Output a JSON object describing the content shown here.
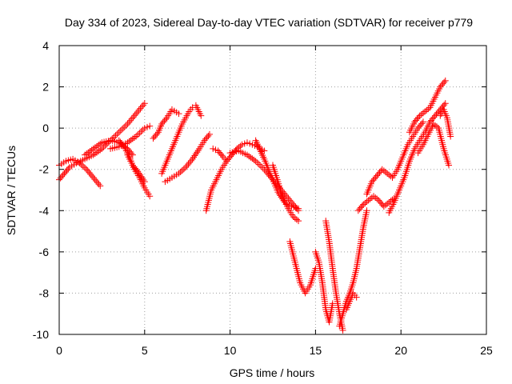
{
  "chart_data": {
    "type": "scatter",
    "title": "Day 334 of 2023, Sidereal Day-to-day VTEC variation (SDTVAR) for receiver p779",
    "xlabel": "GPS time / hours",
    "ylabel": "SDTVAR / TECUs",
    "xlim": [
      0,
      25
    ],
    "ylim": [
      -10,
      4
    ],
    "xticks": [
      0,
      5,
      10,
      15,
      20,
      25
    ],
    "yticks": [
      -10,
      -8,
      -6,
      -4,
      -2,
      0,
      2,
      4
    ],
    "xtick_labels": [
      "0",
      "5",
      "10",
      "15",
      "20",
      "25"
    ],
    "ytick_labels": [
      "-10",
      "-8",
      "-6",
      "-4",
      "-2",
      "0",
      "2",
      "4"
    ],
    "grid": true,
    "marker": "+",
    "color": "#ff0000",
    "series": [
      {
        "x": [
          0.0,
          0.3,
          0.6,
          1.0,
          1.5,
          2.0,
          2.5,
          3.0,
          3.5,
          4.0,
          4.5,
          5.0
        ],
        "y": [
          -2.5,
          -2.2,
          -1.9,
          -1.7,
          -1.5,
          -1.3,
          -1.0,
          -0.6,
          -0.2,
          0.2,
          0.7,
          1.2
        ]
      },
      {
        "x": [
          0.0,
          0.4,
          0.8,
          1.2,
          1.6,
          2.0,
          2.4
        ],
        "y": [
          -1.8,
          -1.6,
          -1.5,
          -1.7,
          -2.0,
          -2.4,
          -2.8
        ]
      },
      {
        "x": [
          1.5,
          2.0,
          2.5,
          3.0,
          3.5,
          4.0,
          4.3
        ],
        "y": [
          -1.3,
          -1.0,
          -0.7,
          -0.6,
          -0.7,
          -1.0,
          -1.3
        ]
      },
      {
        "x": [
          3.5,
          3.8,
          4.1,
          4.4,
          4.7,
          5.0,
          5.3
        ],
        "y": [
          -0.6,
          -0.9,
          -1.4,
          -2.0,
          -2.4,
          -2.9,
          -3.3
        ]
      },
      {
        "x": [
          3.0,
          3.5,
          4.0,
          4.5,
          5.0,
          5.3
        ],
        "y": [
          -1.0,
          -0.9,
          -0.7,
          -0.4,
          0.0,
          0.1
        ]
      },
      {
        "x": [
          4.0,
          4.3,
          4.6,
          5.0
        ],
        "y": [
          -1.3,
          -1.8,
          -2.1,
          -2.6
        ]
      },
      {
        "x": [
          6.0,
          6.2,
          6.4,
          6.6,
          6.8,
          7.0,
          7.2,
          7.4,
          7.6,
          7.8,
          8.0,
          8.3
        ],
        "y": [
          -2.2,
          -1.8,
          -1.4,
          -1.0,
          -0.6,
          -0.2,
          0.2,
          0.5,
          0.8,
          1.0,
          1.1,
          0.6
        ]
      },
      {
        "x": [
          5.5,
          5.8,
          6.0,
          6.3,
          6.6,
          7.0
        ],
        "y": [
          -0.5,
          -0.2,
          0.2,
          0.5,
          0.9,
          0.7
        ]
      },
      {
        "x": [
          6.2,
          6.6,
          7.0,
          7.4,
          7.8,
          8.2,
          8.5,
          8.8
        ],
        "y": [
          -2.6,
          -2.4,
          -2.2,
          -1.9,
          -1.5,
          -1.0,
          -0.6,
          -0.3
        ]
      },
      {
        "x": [
          8.6,
          8.9,
          9.2,
          9.5,
          9.8,
          10.1,
          10.4,
          10.7,
          11.0,
          11.3,
          11.6,
          12.0
        ],
        "y": [
          -4.0,
          -3.0,
          -2.5,
          -2.0,
          -1.6,
          -1.3,
          -1.0,
          -0.8,
          -0.7,
          -0.8,
          -0.9,
          -1.1
        ]
      },
      {
        "x": [
          9.0,
          9.3,
          9.6,
          9.8
        ],
        "y": [
          -1.0,
          -1.1,
          -1.4,
          -1.6
        ]
      },
      {
        "x": [
          10.0,
          10.5,
          11.0,
          11.5,
          12.0,
          12.5,
          13.0,
          13.5,
          14.0
        ],
        "y": [
          -1.2,
          -1.1,
          -1.3,
          -1.6,
          -2.0,
          -2.5,
          -3.0,
          -3.5,
          -4.0
        ]
      },
      {
        "x": [
          11.5,
          12.0,
          12.4,
          12.8,
          13.2,
          13.6,
          14.0
        ],
        "y": [
          -0.6,
          -1.5,
          -2.3,
          -3.1,
          -3.6,
          -3.8,
          -3.9
        ]
      },
      {
        "x": [
          12.5,
          12.8,
          13.1,
          13.4,
          13.7,
          14.0
        ],
        "y": [
          -1.8,
          -2.6,
          -3.4,
          -3.9,
          -4.3,
          -4.5
        ]
      },
      {
        "x": [
          13.5,
          13.8,
          14.1,
          14.4,
          14.7,
          15.0
        ],
        "y": [
          -5.5,
          -6.5,
          -7.5,
          -8.0,
          -7.6,
          -6.8
        ]
      },
      {
        "x": [
          15.0,
          15.2,
          15.4,
          15.6,
          15.8,
          16.0
        ],
        "y": [
          -6.0,
          -6.5,
          -7.5,
          -8.8,
          -9.4,
          -8.5
        ]
      },
      {
        "x": [
          15.6,
          15.8,
          16.0,
          16.2,
          16.4,
          16.6
        ],
        "y": [
          -4.5,
          -5.5,
          -6.8,
          -8.0,
          -9.0,
          -9.8
        ]
      },
      {
        "x": [
          16.4,
          16.6,
          16.8,
          17.0,
          17.2,
          17.4,
          17.6,
          17.8,
          18.0
        ],
        "y": [
          -9.6,
          -9.0,
          -8.4,
          -8.0,
          -7.5,
          -6.8,
          -5.8,
          -4.8,
          -4.0
        ]
      },
      {
        "x": [
          16.8,
          17.0,
          17.2,
          17.4
        ],
        "y": [
          -8.8,
          -8.4,
          -8.0,
          -8.2
        ]
      },
      {
        "x": [
          17.5,
          17.8,
          18.1,
          18.4,
          18.7,
          19.0,
          19.3,
          19.6
        ],
        "y": [
          -4.0,
          -3.7,
          -3.5,
          -3.3,
          -3.5,
          -3.8,
          -3.6,
          -3.4
        ]
      },
      {
        "x": [
          18.0,
          18.3,
          18.6,
          18.9,
          19.2,
          19.5,
          19.8,
          20.1,
          20.4,
          20.7,
          21.0,
          21.3
        ],
        "y": [
          -3.2,
          -2.6,
          -2.3,
          -2.0,
          -2.2,
          -2.4,
          -2.0,
          -1.4,
          -0.8,
          -0.4,
          0.0,
          0.3
        ]
      },
      {
        "x": [
          19.3,
          19.6,
          19.9,
          20.2,
          20.5,
          20.8,
          21.1,
          21.4,
          21.7,
          22.0,
          22.3,
          22.6
        ],
        "y": [
          -4.1,
          -3.6,
          -3.0,
          -2.4,
          -1.6,
          -1.0,
          -0.6,
          -0.2,
          0.3,
          0.6,
          0.9,
          1.2
        ]
      },
      {
        "x": [
          20.5,
          20.8,
          21.1,
          21.4,
          21.7,
          22.0,
          22.3,
          22.6
        ],
        "y": [
          -0.2,
          0.3,
          0.6,
          0.8,
          1.0,
          1.5,
          2.0,
          2.3
        ]
      },
      {
        "x": [
          21.0,
          21.3,
          21.6,
          21.9,
          22.2,
          22.5,
          22.8
        ],
        "y": [
          -1.2,
          -0.8,
          -0.3,
          0.2,
          0.0,
          -1.0,
          -1.8
        ]
      },
      {
        "x": [
          22.3,
          22.5,
          22.7,
          22.9
        ],
        "y": [
          0.6,
          0.9,
          0.5,
          -0.4
        ]
      }
    ]
  }
}
